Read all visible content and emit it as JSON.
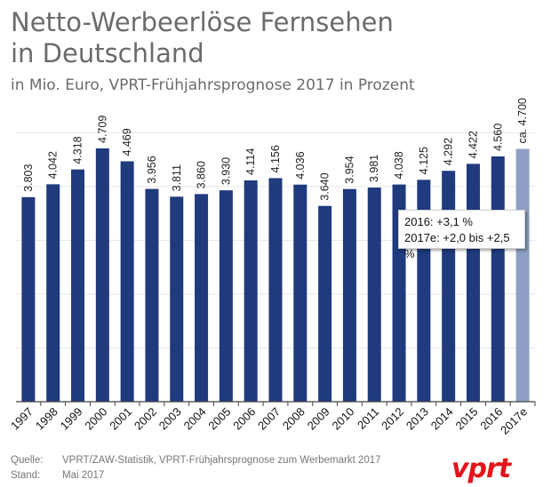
{
  "header": {
    "title_line1": "Netto-Werbeerlöse Fernsehen",
    "title_line2": "in Deutschland",
    "subtitle": "in Mio. Euro, VPRT-Frühjahrsprognose 2017 in Prozent"
  },
  "chart_data": {
    "type": "bar",
    "categories": [
      "1997",
      "1998",
      "1999",
      "2000",
      "2001",
      "2002",
      "2003",
      "2004",
      "2005",
      "2006",
      "2007",
      "2008",
      "2009",
      "2010",
      "2011",
      "2012",
      "2013",
      "2014",
      "2015",
      "2016",
      "2017e"
    ],
    "values": [
      3803,
      4042,
      4318,
      4709,
      4469,
      3956,
      3811,
      3860,
      3930,
      4114,
      4156,
      4036,
      3640,
      3954,
      3981,
      4038,
      4125,
      4292,
      4422,
      4560,
      4700
    ],
    "value_labels": [
      "3.803",
      "4.042",
      "4.318",
      "4.709",
      "4.469",
      "3.956",
      "3.811",
      "3.860",
      "3.930",
      "4.114",
      "4.156",
      "4.036",
      "3.640",
      "3.954",
      "3.981",
      "4.038",
      "4.125",
      "4.292",
      "4.422",
      "4.560",
      "ca. 4.700"
    ],
    "forecast_index": 20,
    "ylim": [
      0,
      5000
    ],
    "grid": true,
    "colors": {
      "bar": "#1f3a7d",
      "forecast": "#8d9fc4",
      "grid": "#e6e6e6",
      "axis": "#444444"
    }
  },
  "callout": {
    "line1": "2016: +3,1 %",
    "line2": "2017e: +2,0 bis +2,5 %"
  },
  "footer": {
    "source_label": "Quelle:",
    "source_text": "VPRT/ZAW-Statistik, VPRT-Frühjahrsprognose zum Werbemarkt 2017",
    "date_label": "Stand:",
    "date_text": "Mai 2017"
  },
  "logo": {
    "text": "vprt",
    "icon": "vprt-logo"
  }
}
